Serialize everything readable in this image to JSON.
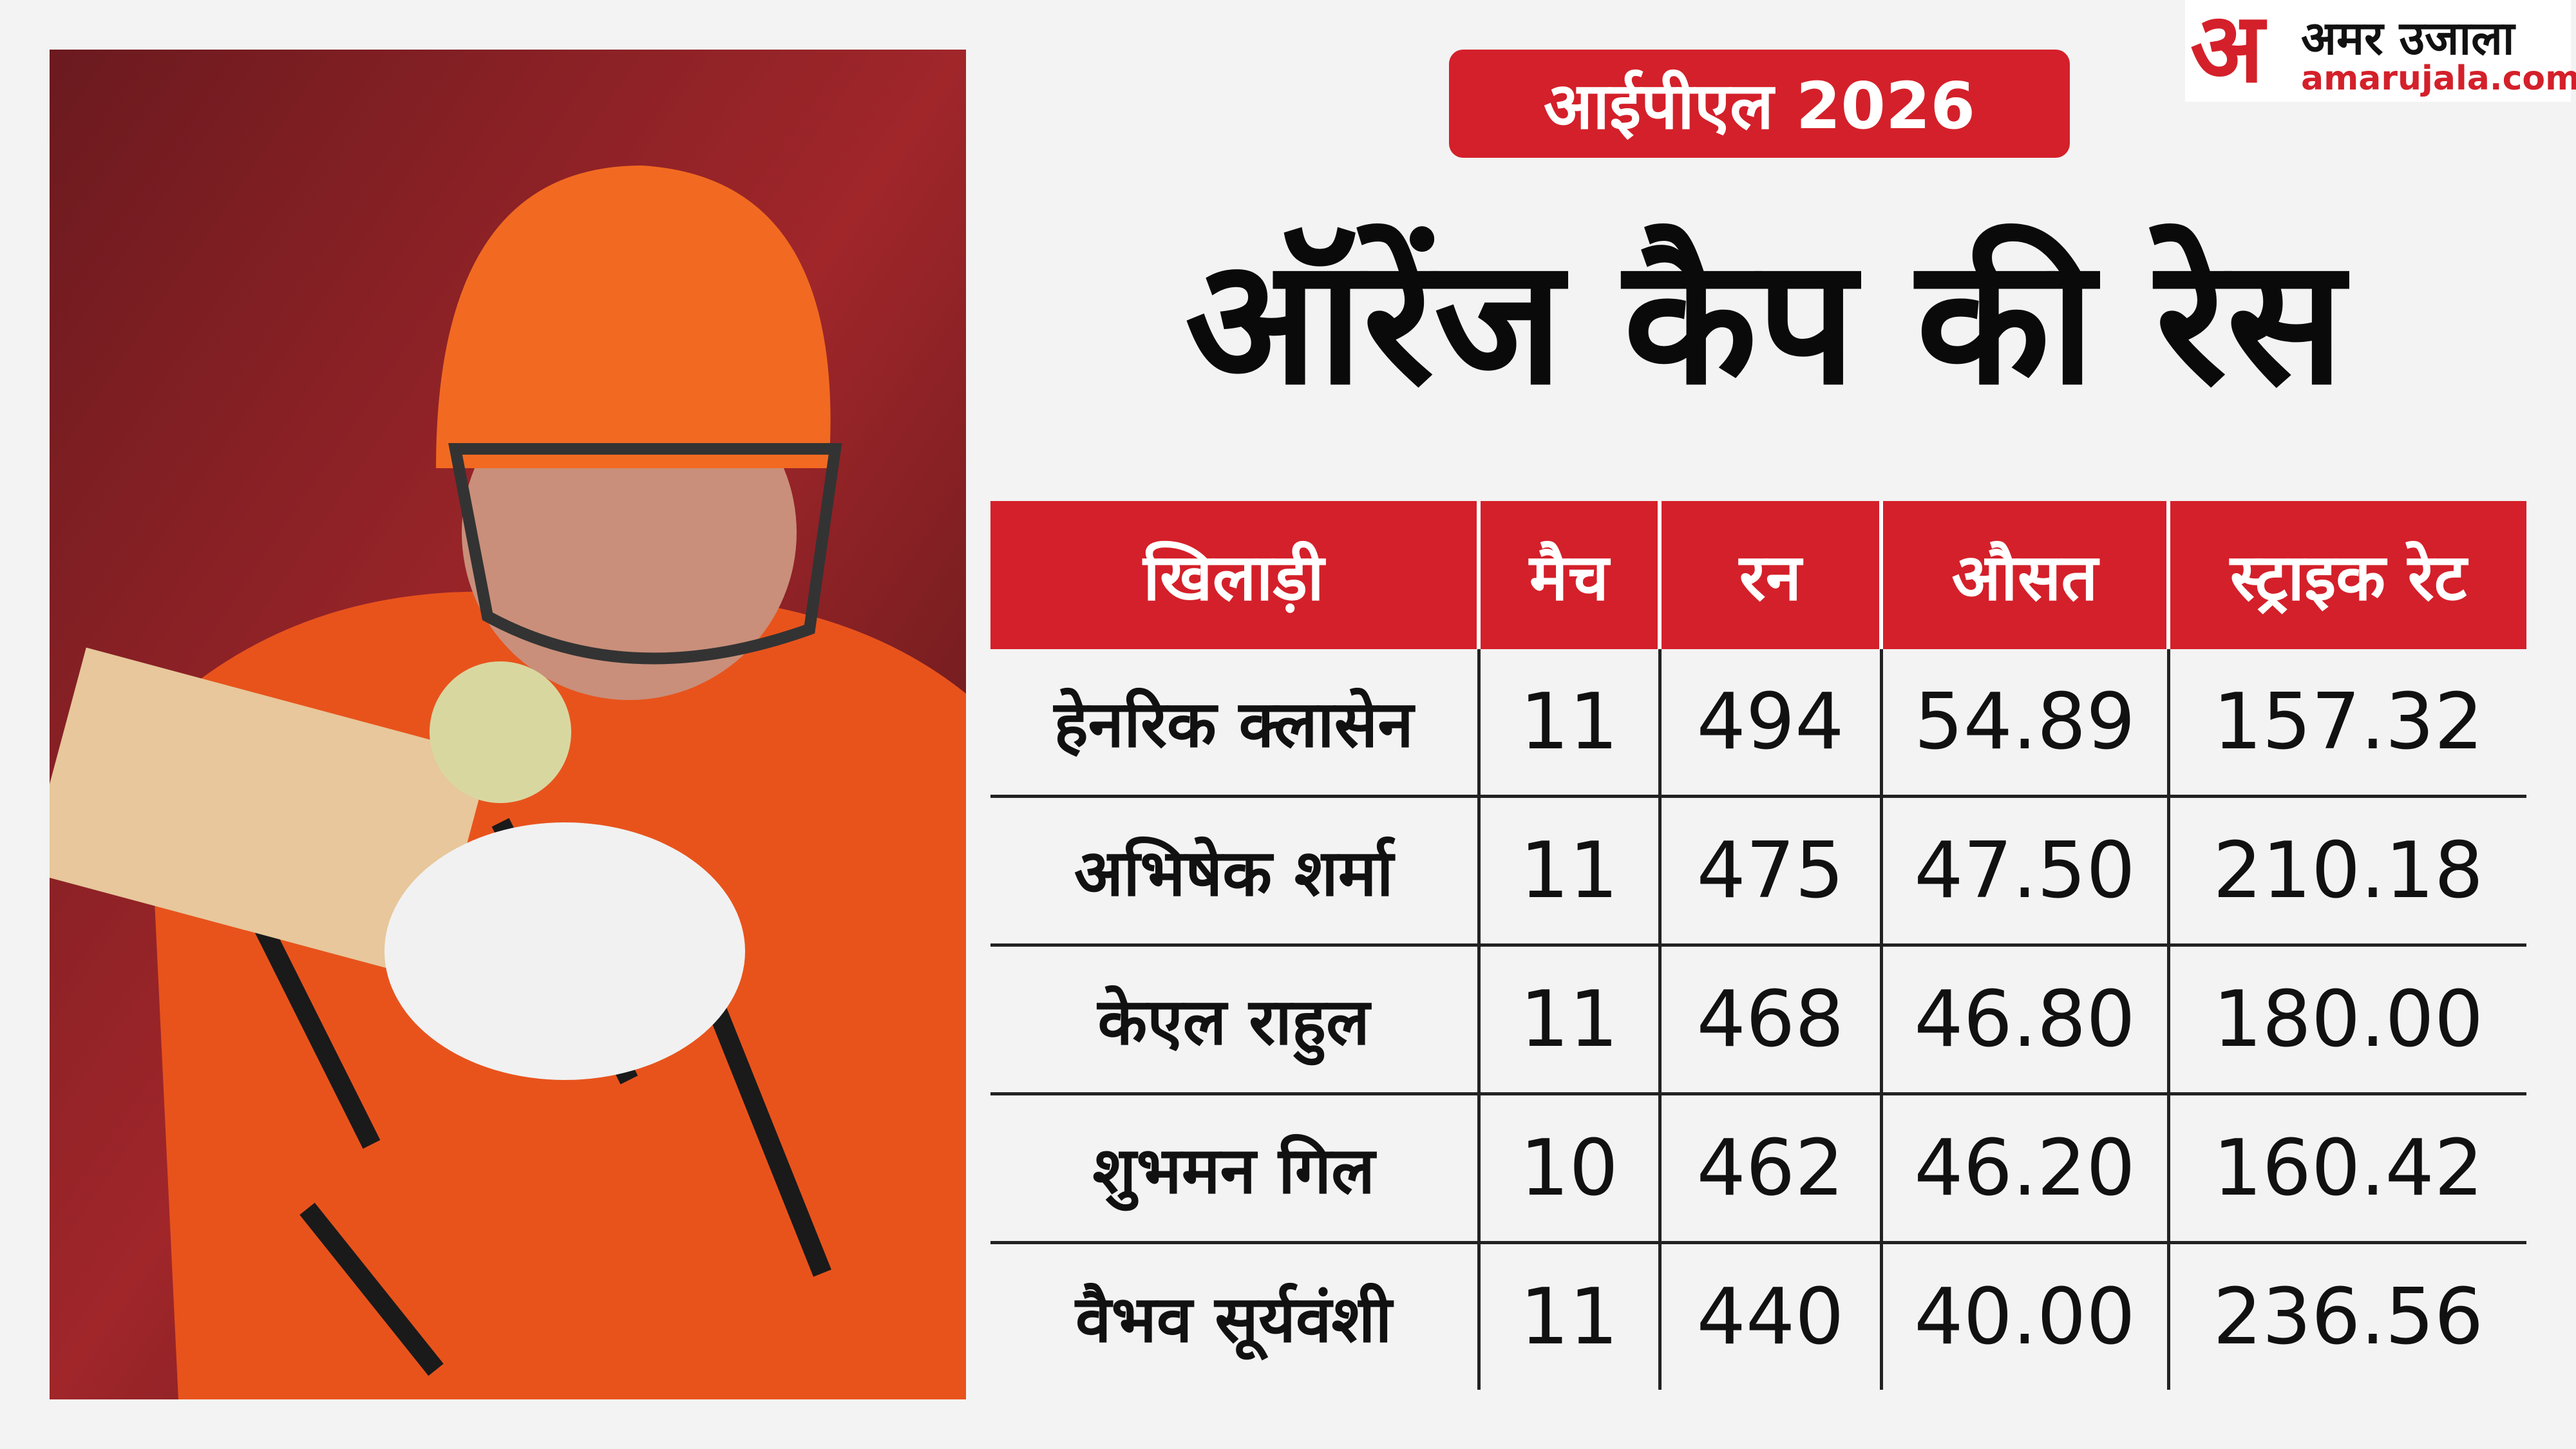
{
  "header": {
    "badge": "आईपीएल 2026",
    "title": "ऑरेंज कैप की रेस"
  },
  "logo": {
    "mark": "अ",
    "name": "अमर उजाला",
    "url": "amarujala.com"
  },
  "table": {
    "columns": [
      "खिलाड़ी",
      "मैच",
      "रन",
      "औसत",
      "स्ट्राइक रेट"
    ],
    "rows": [
      [
        "हेनरिक क्लासेन",
        "11",
        "494",
        "54.89",
        "157.32"
      ],
      [
        "अभिषेक शर्मा",
        "11",
        "475",
        "47.50",
        "210.18"
      ],
      [
        "केएल राहुल",
        "11",
        "468",
        "46.80",
        "180.00"
      ],
      [
        "शुभमन गिल",
        "10",
        "462",
        "46.20",
        "160.42"
      ],
      [
        "वैभव सूर्यवंशी",
        "11",
        "440",
        "40.00",
        "236.56"
      ]
    ]
  }
}
